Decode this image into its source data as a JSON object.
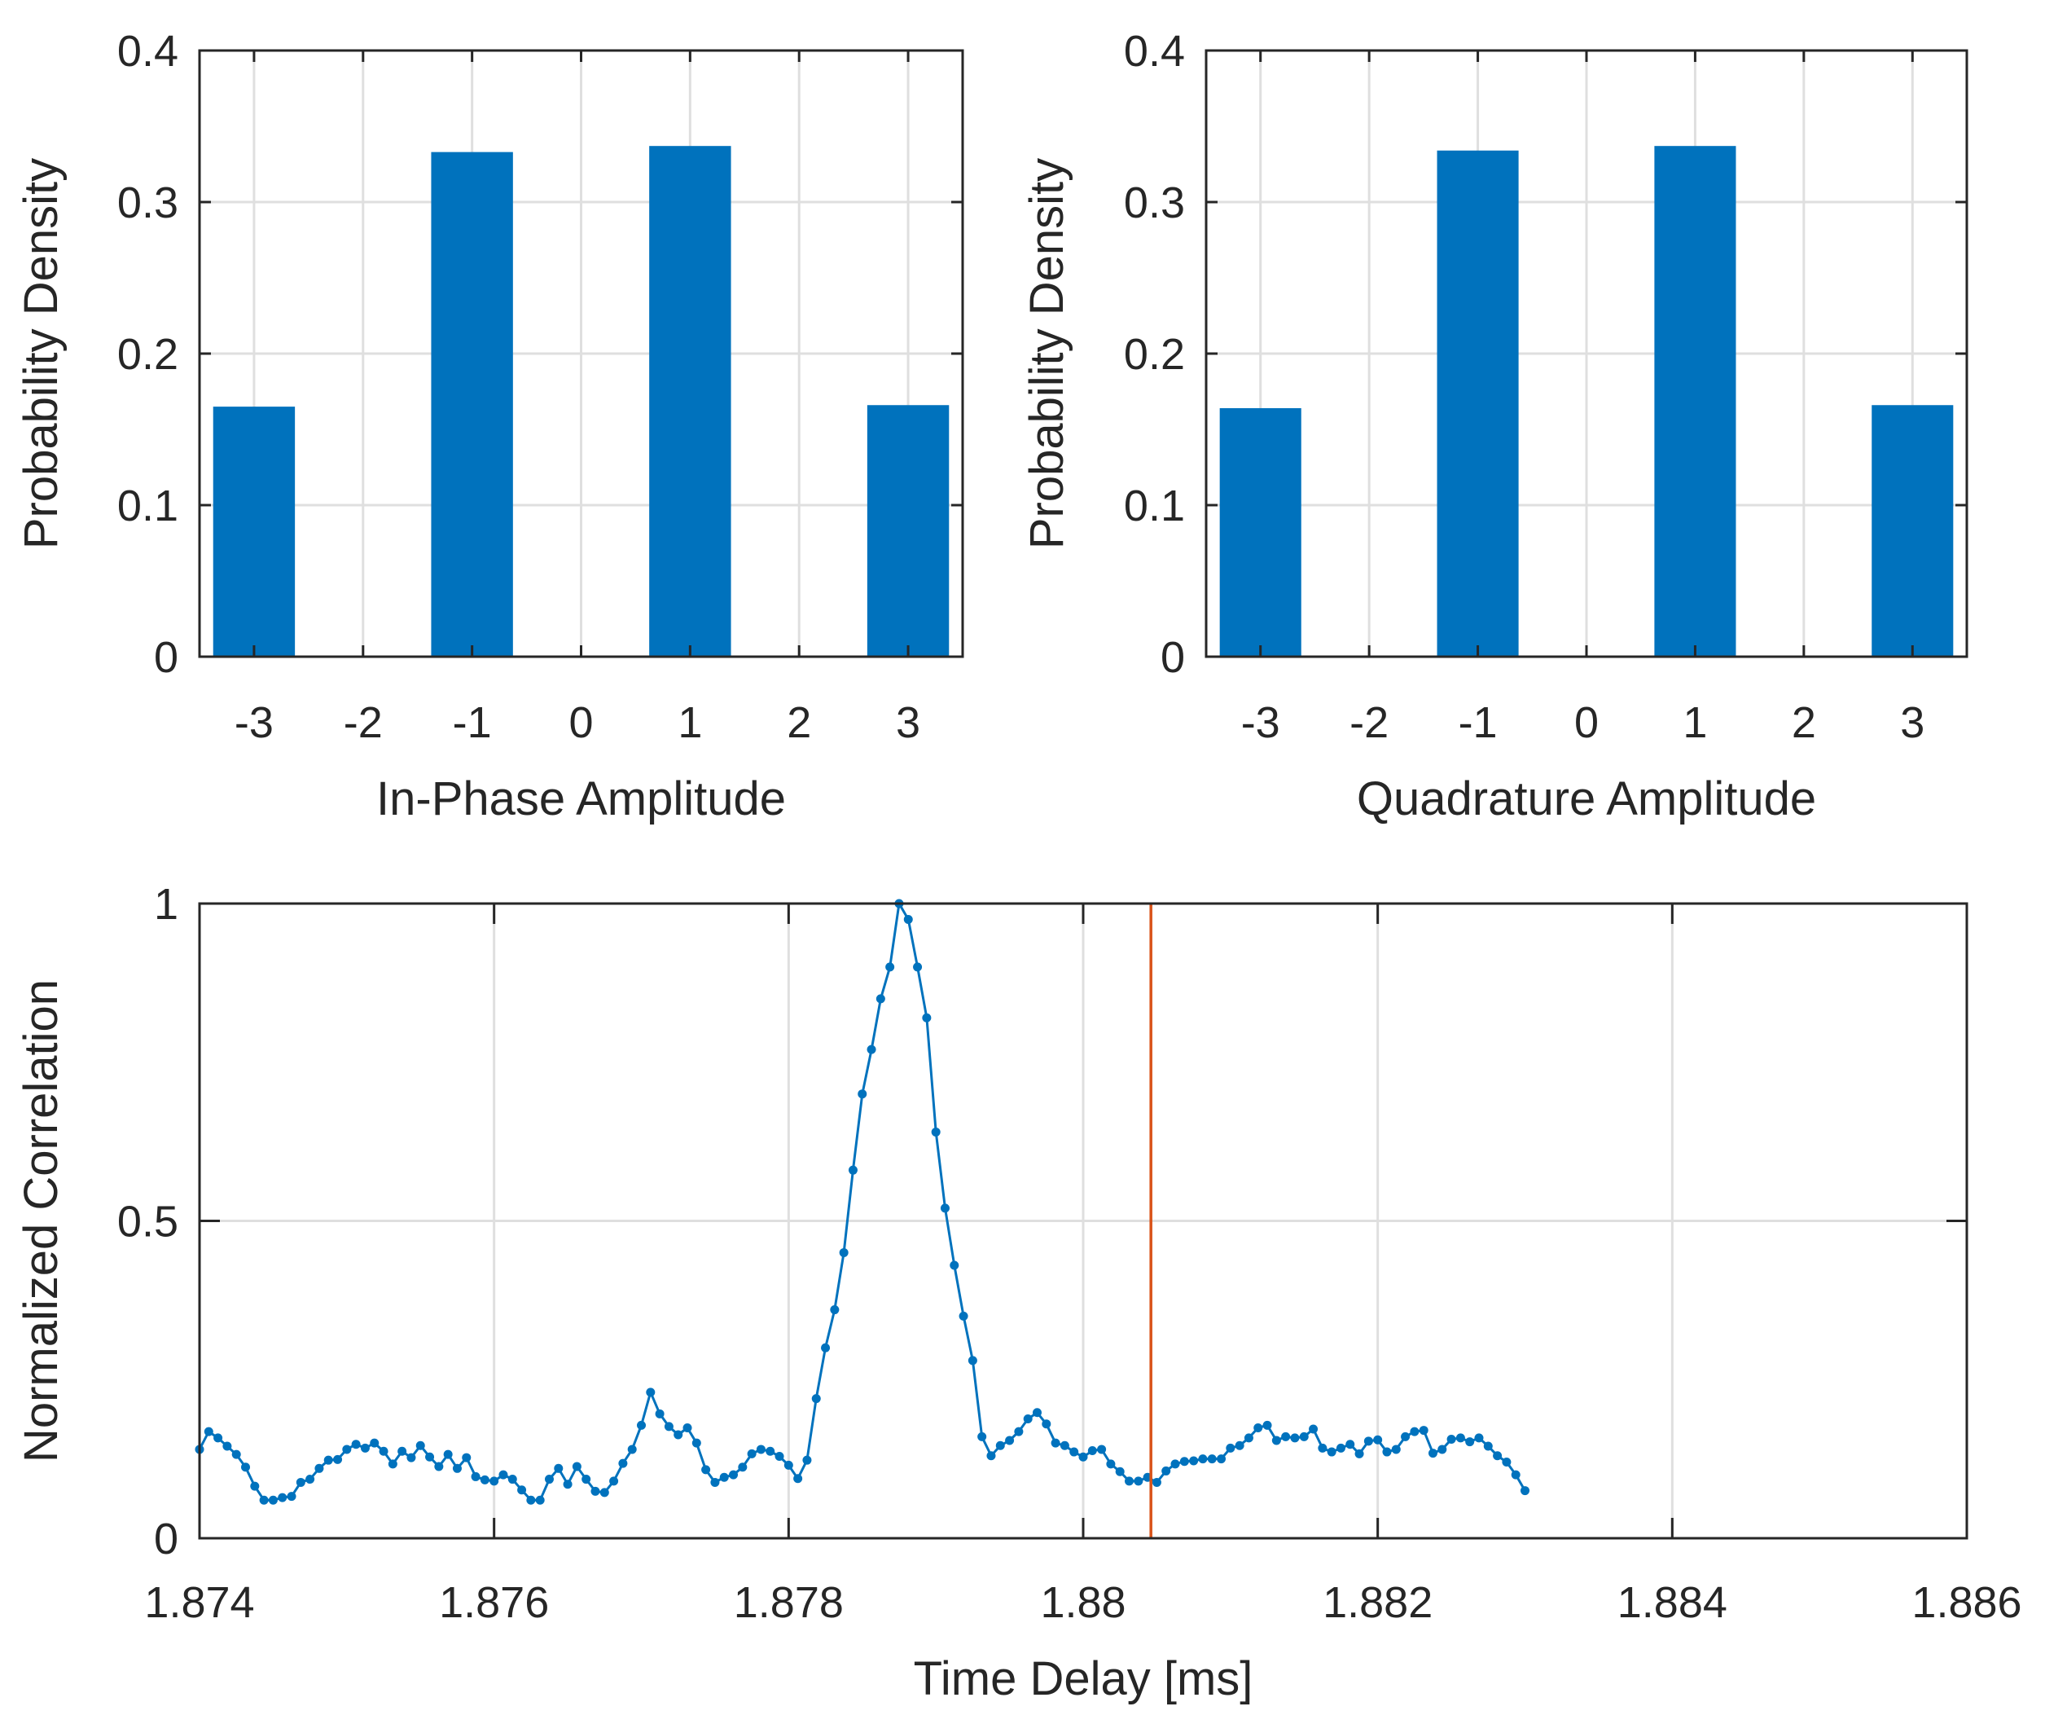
{
  "colors": {
    "bar": "#0072bd",
    "line": "#0072bd",
    "marker_line": "#d95319",
    "grid": "#dfdfdf",
    "axis": "#262626"
  },
  "chart_data": [
    {
      "type": "bar",
      "id": "inphase",
      "categories": [
        -3,
        -2,
        -1,
        0,
        1,
        2,
        3
      ],
      "bars": [
        {
          "x": -3,
          "value": 0.165
        },
        {
          "x": -1,
          "value": 0.333
        },
        {
          "x": 1,
          "value": 0.337
        },
        {
          "x": 3,
          "value": 0.166
        }
      ],
      "xlim": [
        -3.5,
        3.5
      ],
      "ylim": [
        0,
        0.4
      ],
      "xticks": [
        -3,
        -2,
        -1,
        0,
        1,
        2,
        3
      ],
      "xtick_labels": [
        "-3",
        "-2",
        "-1",
        "0",
        "1",
        "2",
        "3"
      ],
      "yticks": [
        0,
        0.1,
        0.2,
        0.3,
        0.4
      ],
      "ytick_labels": [
        "0",
        "0.1",
        "0.2",
        "0.3",
        "0.4"
      ],
      "xlabel": "In-Phase Amplitude",
      "ylabel": "Probability Density",
      "grid": true
    },
    {
      "type": "bar",
      "id": "quadrature",
      "categories": [
        -3,
        -2,
        -1,
        0,
        1,
        2,
        3
      ],
      "bars": [
        {
          "x": -3,
          "value": 0.164
        },
        {
          "x": -1,
          "value": 0.334
        },
        {
          "x": 1,
          "value": 0.337
        },
        {
          "x": 3,
          "value": 0.166
        }
      ],
      "xlim": [
        -3.5,
        3.5
      ],
      "ylim": [
        0,
        0.4
      ],
      "xticks": [
        -3,
        -2,
        -1,
        0,
        1,
        2,
        3
      ],
      "xtick_labels": [
        "-3",
        "-2",
        "-1",
        "0",
        "1",
        "2",
        "3"
      ],
      "yticks": [
        0,
        0.1,
        0.2,
        0.3,
        0.4
      ],
      "ytick_labels": [
        "0",
        "0.1",
        "0.2",
        "0.3",
        "0.4"
      ],
      "xlabel": "Quadrature Amplitude",
      "ylabel": "Probability Density",
      "grid": true
    },
    {
      "type": "line",
      "id": "correlation",
      "x_start": 1.874,
      "x_step": 6.25e-05,
      "y": [
        0.14,
        0.168,
        0.158,
        0.145,
        0.132,
        0.112,
        0.082,
        0.06,
        0.06,
        0.064,
        0.066,
        0.088,
        0.093,
        0.11,
        0.123,
        0.124,
        0.14,
        0.148,
        0.142,
        0.15,
        0.137,
        0.117,
        0.137,
        0.127,
        0.146,
        0.128,
        0.113,
        0.132,
        0.11,
        0.127,
        0.097,
        0.092,
        0.09,
        0.1,
        0.093,
        0.076,
        0.06,
        0.06,
        0.093,
        0.11,
        0.085,
        0.113,
        0.093,
        0.074,
        0.072,
        0.09,
        0.118,
        0.14,
        0.178,
        0.23,
        0.196,
        0.176,
        0.163,
        0.174,
        0.15,
        0.108,
        0.088,
        0.096,
        0.1,
        0.112,
        0.133,
        0.14,
        0.137,
        0.129,
        0.115,
        0.094,
        0.123,
        0.22,
        0.3,
        0.36,
        0.45,
        0.58,
        0.7,
        0.77,
        0.85,
        0.9,
        1.0,
        0.975,
        0.9,
        0.82,
        0.64,
        0.52,
        0.43,
        0.35,
        0.28,
        0.16,
        0.13,
        0.146,
        0.154,
        0.168,
        0.188,
        0.198,
        0.18,
        0.15,
        0.146,
        0.136,
        0.128,
        0.138,
        0.14,
        0.117,
        0.105,
        0.09,
        0.09,
        0.096,
        0.088,
        0.106,
        0.117,
        0.121,
        0.122,
        0.125,
        0.125,
        0.125,
        0.142,
        0.146,
        0.158,
        0.174,
        0.178,
        0.154,
        0.16,
        0.158,
        0.16,
        0.172,
        0.142,
        0.136,
        0.142,
        0.148,
        0.133,
        0.153,
        0.155,
        0.136,
        0.14,
        0.16,
        0.168,
        0.17,
        0.134,
        0.14,
        0.156,
        0.158,
        0.152,
        0.158,
        0.145,
        0.13,
        0.12,
        0.1,
        0.075
      ],
      "vline_x": 1.88046,
      "xlim": [
        1.874,
        1.886
      ],
      "ylim": [
        0,
        1
      ],
      "xticks": [
        1.874,
        1.876,
        1.878,
        1.88,
        1.882,
        1.884,
        1.886
      ],
      "xtick_labels": [
        "1.874",
        "1.876",
        "1.878",
        "1.88",
        "1.882",
        "1.884",
        "1.886"
      ],
      "yticks": [
        0,
        0.5,
        1
      ],
      "ytick_labels": [
        "0",
        "0.5",
        "1"
      ],
      "xlabel": "Time Delay [ms]",
      "ylabel": "Normalized Correlation",
      "grid": true
    }
  ]
}
